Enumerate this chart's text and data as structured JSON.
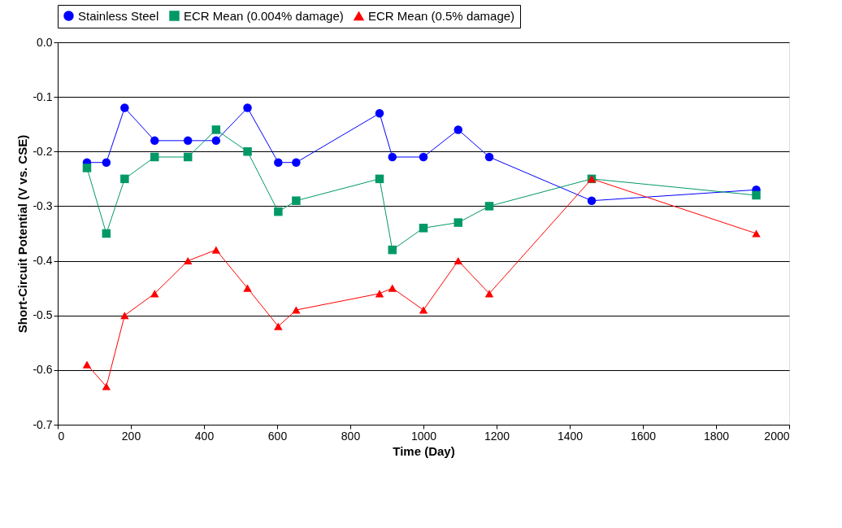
{
  "chart_data": {
    "type": "line",
    "xlabel": "Time (Day)",
    "ylabel": "Short-Circuit Potential (V vs. CSE)",
    "x": [
      80,
      133,
      183,
      265,
      356,
      433,
      519,
      603,
      652,
      880,
      915,
      1000,
      1095,
      1180,
      1460,
      1910
    ],
    "series": [
      {
        "name": "Stainless Steel",
        "color": "#0000ff",
        "marker": "circle",
        "values": [
          -0.22,
          -0.22,
          -0.12,
          -0.18,
          -0.18,
          -0.18,
          -0.12,
          -0.22,
          -0.22,
          -0.13,
          -0.21,
          -0.21,
          -0.16,
          -0.21,
          -0.29,
          -0.27
        ]
      },
      {
        "name": "ECR Mean (0.004% damage)",
        "color": "#009966",
        "marker": "square",
        "values": [
          -0.23,
          -0.35,
          -0.25,
          -0.21,
          -0.21,
          -0.16,
          -0.2,
          -0.31,
          -0.29,
          -0.25,
          -0.38,
          -0.34,
          -0.33,
          -0.3,
          -0.25,
          -0.28
        ]
      },
      {
        "name": "ECR Mean (0.5% damage)",
        "color": "#ff0000",
        "marker": "triangle",
        "values": [
          -0.59,
          -0.63,
          -0.5,
          -0.46,
          -0.4,
          -0.38,
          -0.45,
          -0.52,
          -0.49,
          -0.46,
          -0.45,
          -0.49,
          -0.4,
          -0.46,
          -0.25,
          -0.35
        ]
      }
    ],
    "xlim": [
      0,
      2000
    ],
    "xticks": [
      0,
      200,
      400,
      600,
      800,
      1000,
      1200,
      1400,
      1600,
      1800,
      2000
    ],
    "ylim": [
      -0.7,
      0
    ],
    "yticks": [
      {
        "value": 0,
        "label": "0.0"
      },
      -0.1,
      -0.2,
      -0.3,
      -0.4,
      -0.5,
      -0.6,
      -0.7
    ],
    "grid": "y",
    "legend": "top",
    "line_style": "solid"
  }
}
